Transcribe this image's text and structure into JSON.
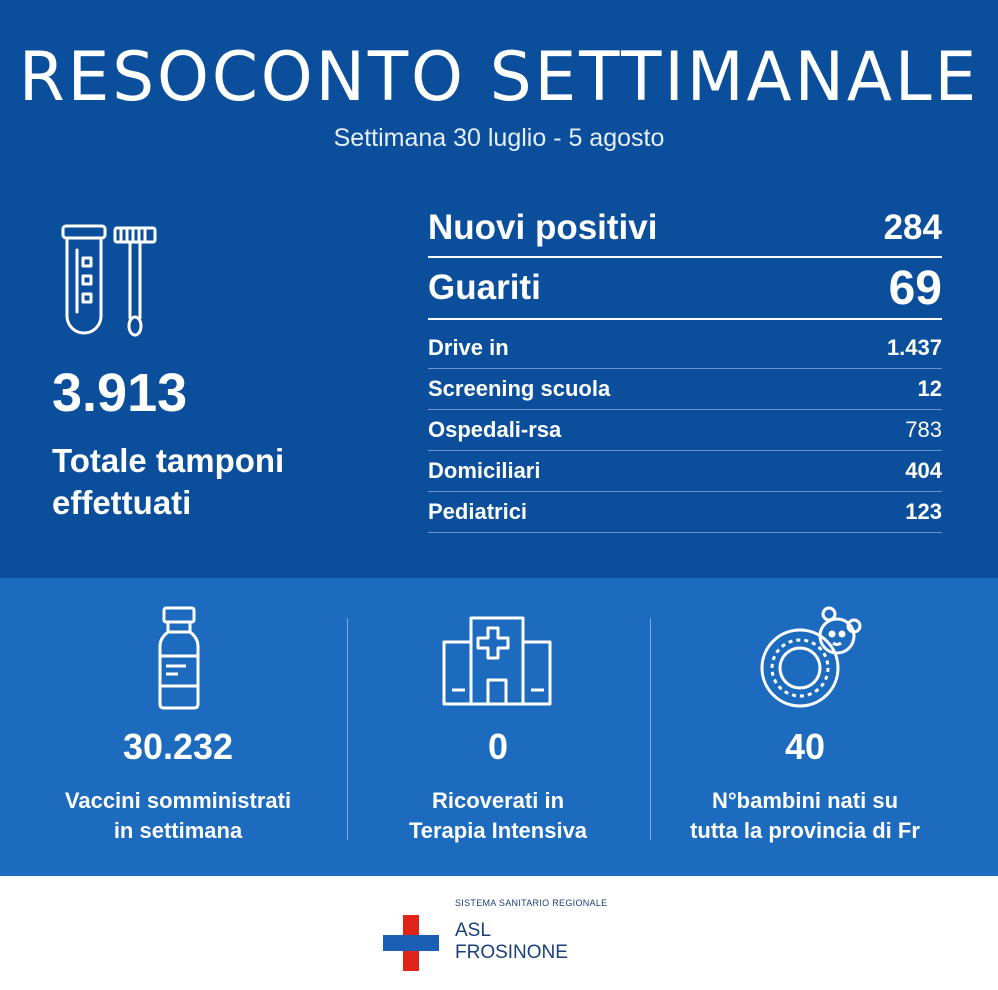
{
  "header": {
    "title": "RESOCONTO SETTIMANALE",
    "subtitle": "Settimana 30 luglio - 5 agosto"
  },
  "total": {
    "icon": "test-tube-swab-icon",
    "value": "3.913",
    "label_line1": "Totale tamponi",
    "label_line2": "effettuati"
  },
  "stats": {
    "nuovi_positivi": {
      "label": "Nuovi positivi",
      "value": "284"
    },
    "guariti": {
      "label": "Guariti",
      "value": "69"
    },
    "breakdown": [
      {
        "label": "Drive in",
        "value": "1.437"
      },
      {
        "label": "Screening scuola",
        "value": "12"
      },
      {
        "label": "Ospedali-rsa",
        "value": "783"
      },
      {
        "label": "Domiciliari",
        "value": "404"
      },
      {
        "label": "Pediatrici",
        "value": "123"
      }
    ]
  },
  "bottom": {
    "vaccini": {
      "icon": "vaccine-vial-icon",
      "value": "30.232",
      "line1": "Vaccini somministrati",
      "line2": "in settimana"
    },
    "ricoverati": {
      "icon": "hospital-icon",
      "value": "0",
      "line1": "Ricoverati in",
      "line2": "Terapia Intensiva"
    },
    "bambini": {
      "icon": "baby-teether-icon",
      "value": "40",
      "line1": "N°bambini nati su",
      "line2": "tutta la provincia di Fr"
    }
  },
  "footer": {
    "small": "SISTEMA SANITARIO REGIONALE",
    "name_line1": "ASL",
    "name_line2": "FROSINONE"
  },
  "colors": {
    "top_bg": "#0b4f9c",
    "bottom_bg": "#1c6bbf",
    "logo_blue": "#1a5fb4",
    "logo_red": "#e2231a"
  }
}
